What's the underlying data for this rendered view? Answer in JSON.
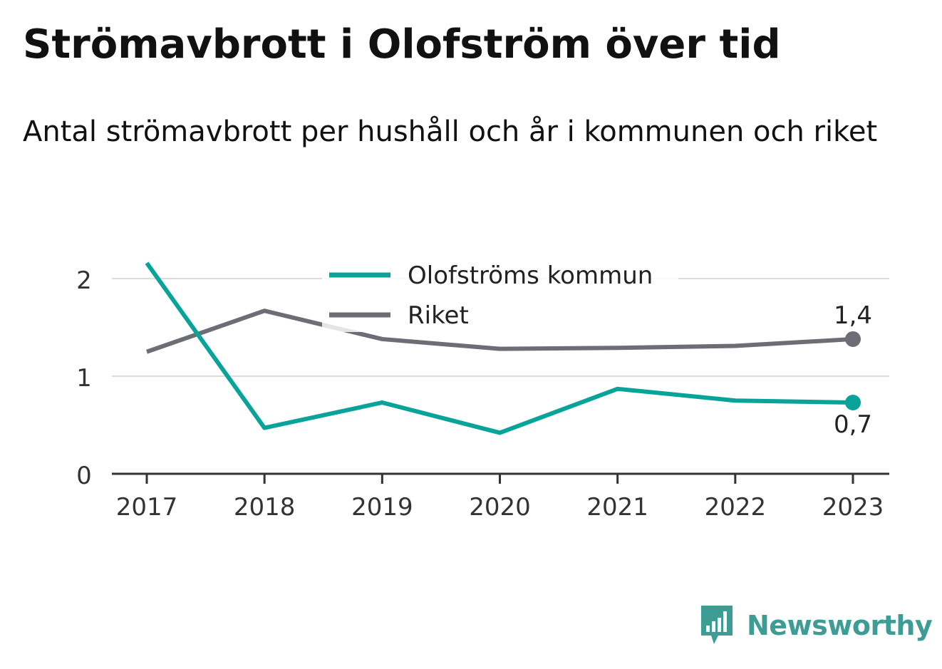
{
  "title": "Strömavbrott i Olofström över tid",
  "subtitle": "Antal strömavbrott per hushåll och år i kommunen och riket",
  "brand": {
    "name": "Newsworthy",
    "icon": "bar-chart-speech-bubble-icon",
    "color": "#3d9c94"
  },
  "chart_data": {
    "type": "line",
    "x": [
      "2017",
      "2018",
      "2019",
      "2020",
      "2021",
      "2022",
      "2023"
    ],
    "y_ticks": [
      "0",
      "1",
      "2"
    ],
    "ylim": [
      0,
      2.25
    ],
    "grid": true,
    "legend_position": "top-center",
    "series": [
      {
        "name": "Olofströms kommun",
        "color": "#0aa39a",
        "values": [
          2.16,
          0.47,
          0.73,
          0.42,
          0.87,
          0.75,
          0.73
        ],
        "end_label": "0,7"
      },
      {
        "name": "Riket",
        "color": "#6d6d75",
        "values": [
          1.25,
          1.67,
          1.38,
          1.28,
          1.29,
          1.31,
          1.38
        ],
        "end_label": "1,4"
      }
    ]
  }
}
